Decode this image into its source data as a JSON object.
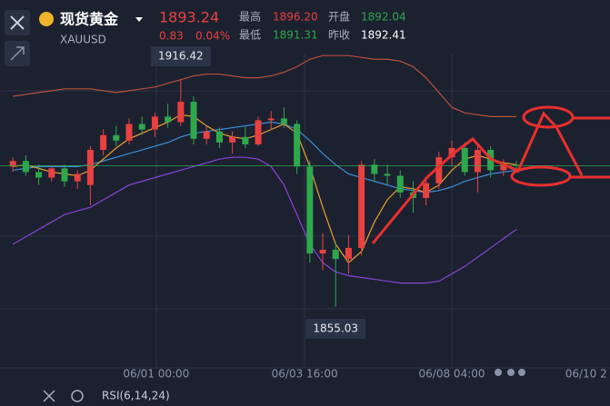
{
  "header": {
    "title": "现货黄金",
    "symbol": "XAUUSD",
    "price": "1893.24",
    "change": "0.83",
    "change_pct": "0.04%",
    "stats": [
      {
        "label": "最高",
        "value": "1896.20"
      },
      {
        "label": "开盘",
        "value": "1892.04"
      },
      {
        "label": "最低",
        "value": "1891.31"
      },
      {
        "label": "昨收",
        "value": "1892.41"
      }
    ]
  },
  "footer": {
    "indicator": "RSI(6,14,24)"
  },
  "chart_data": {
    "type": "candlestick",
    "categories": [
      null,
      null,
      null,
      null,
      null,
      null,
      null,
      null,
      null,
      null,
      null,
      null,
      null,
      null,
      null,
      null,
      null,
      null,
      null,
      null,
      null,
      null,
      null,
      null,
      null,
      null,
      null,
      null,
      null,
      null,
      null,
      null,
      null,
      null,
      null,
      null,
      null,
      null,
      null,
      null
    ],
    "open": [
      1893.0,
      1894.5,
      1891.5,
      1890.0,
      1892.5,
      1889.0,
      1888.0,
      1897.5,
      1901.5,
      1900.0,
      1904.5,
      1903.0,
      1906.5,
      1905.0,
      1910.5,
      1900.5,
      1902.5,
      1899.5,
      1901.0,
      1899.0,
      1905.5,
      1906.0,
      1904.5,
      1893.0,
      1869.5,
      1870.5,
      1868.0,
      1871.0,
      1893.5,
      1891.0,
      1890.5,
      1886.0,
      1884.5,
      1888.5,
      1895.5,
      1898.0,
      1891.5,
      1897.5,
      1892.0,
      1893.5
    ],
    "high": [
      1895.5,
      1896.0,
      1893.5,
      1893.0,
      1893.5,
      1892.0,
      1898.5,
      1903.0,
      1904.0,
      1906.0,
      1906.5,
      1907.5,
      1910.0,
      1916.42,
      1912.0,
      1904.0,
      1903.5,
      1902.5,
      1904.0,
      1906.5,
      1908.0,
      1909.0,
      1905.5,
      1894.5,
      1875.0,
      1872.5,
      1874.5,
      1894.5,
      1895.0,
      1893.5,
      1892.0,
      1889.0,
      1890.0,
      1897.0,
      1900.0,
      1899.5,
      1899.0,
      1898.5,
      1895.0,
      1894.5
    ],
    "low": [
      1891.5,
      1890.5,
      1888.0,
      1889.0,
      1887.5,
      1887.0,
      1882.5,
      1896.0,
      1898.5,
      1899.0,
      1901.5,
      1901.0,
      1903.5,
      1904.0,
      1899.0,
      1899.0,
      1898.0,
      1896.5,
      1898.0,
      1898.5,
      1903.0,
      1903.5,
      1891.0,
      1867.0,
      1865.0,
      1855.03,
      1864.0,
      1869.0,
      1889.0,
      1888.0,
      1884.5,
      1880.5,
      1882.5,
      1887.0,
      1893.0,
      1890.5,
      1886.0,
      1890.0,
      1890.5,
      1892.0
    ],
    "close": [
      1894.5,
      1891.5,
      1890.0,
      1892.5,
      1889.0,
      1891.0,
      1897.5,
      1901.5,
      1900.0,
      1904.5,
      1903.0,
      1906.5,
      1905.0,
      1910.5,
      1900.5,
      1902.5,
      1899.5,
      1901.0,
      1899.0,
      1905.5,
      1906.0,
      1904.5,
      1893.0,
      1869.5,
      1870.5,
      1868.0,
      1871.0,
      1893.5,
      1891.0,
      1890.5,
      1886.0,
      1884.5,
      1888.5,
      1895.5,
      1898.0,
      1891.5,
      1897.5,
      1892.0,
      1893.5,
      1893.24
    ],
    "up_color": "#e8413f",
    "down_color": "#2ea84b",
    "series": [
      {
        "color": "#b8503a",
        "values": [
          1912,
          1912.5,
          1913,
          1913.5,
          1914,
          1914,
          1914,
          1913.5,
          1913,
          1913.5,
          1914,
          1914.5,
          1915.5,
          1916.5,
          1917.5,
          1918,
          1918,
          1917.5,
          1917,
          1917,
          1917.5,
          1918.5,
          1920,
          1922,
          1923,
          1923,
          1923,
          1922.5,
          1922,
          1922,
          1921.5,
          1920,
          1917,
          1913,
          1909,
          1907.5,
          1907,
          1906.5,
          1906.5,
          1906.5
        ]
      },
      {
        "color": "#8a42d6",
        "values": [
          1872,
          1874,
          1876,
          1878,
          1880,
          1881,
          1882,
          1884,
          1886,
          1888,
          1889,
          1890,
          1891,
          1892,
          1893,
          1894,
          1895,
          1895.5,
          1895.5,
          1895,
          1893,
          1888,
          1880,
          1872,
          1867,
          1864.5,
          1863.5,
          1863,
          1862.5,
          1862,
          1861.5,
          1861.5,
          1861.5,
          1862,
          1864,
          1866,
          1868.5,
          1871,
          1873.5,
          1876
        ]
      },
      {
        "color": "#3a8fd8",
        "values": [
          1892,
          1892.5,
          1893,
          1893,
          1893,
          1893,
          1893.5,
          1894.5,
          1895.5,
          1896.5,
          1897.5,
          1898.5,
          1899.5,
          1901,
          1902,
          1902.5,
          1903,
          1903.5,
          1904,
          1904.5,
          1905,
          1904.5,
          1903,
          1900,
          1896.5,
          1893.5,
          1891,
          1890,
          1889,
          1888,
          1887,
          1886.5,
          1886,
          1886.5,
          1887.5,
          1889,
          1890,
          1891,
          1891.5,
          1892
        ]
      },
      {
        "color": "#e8a030",
        "values": [
          1893,
          1893.5,
          1892.5,
          1891.5,
          1891,
          1890.5,
          1892,
          1895,
          1898,
          1900.5,
          1902,
          1903.5,
          1905,
          1907,
          1906.5,
          1904,
          1902,
          1901,
          1900.5,
          1901.5,
          1903,
          1904.5,
          1902,
          1893,
          1882,
          1872,
          1867,
          1870,
          1878,
          1884,
          1887.5,
          1887,
          1886,
          1888,
          1892,
          1895,
          1896,
          1895,
          1894,
          1893.5
        ]
      }
    ],
    "xlim": [
      -1,
      46.25
    ],
    "ylim": [
      1839.8,
      1928.2
    ],
    "xticks": [
      {
        "value": 11.1,
        "label": "06/01 00:00"
      },
      {
        "value": 22.6,
        "label": "06/03 16:00"
      },
      {
        "value": 34,
        "label": "06/08 04:00"
      },
      {
        "value": 44.4,
        "label": "06/10 2"
      }
    ],
    "last_color": "#2ea84b"
  }
}
